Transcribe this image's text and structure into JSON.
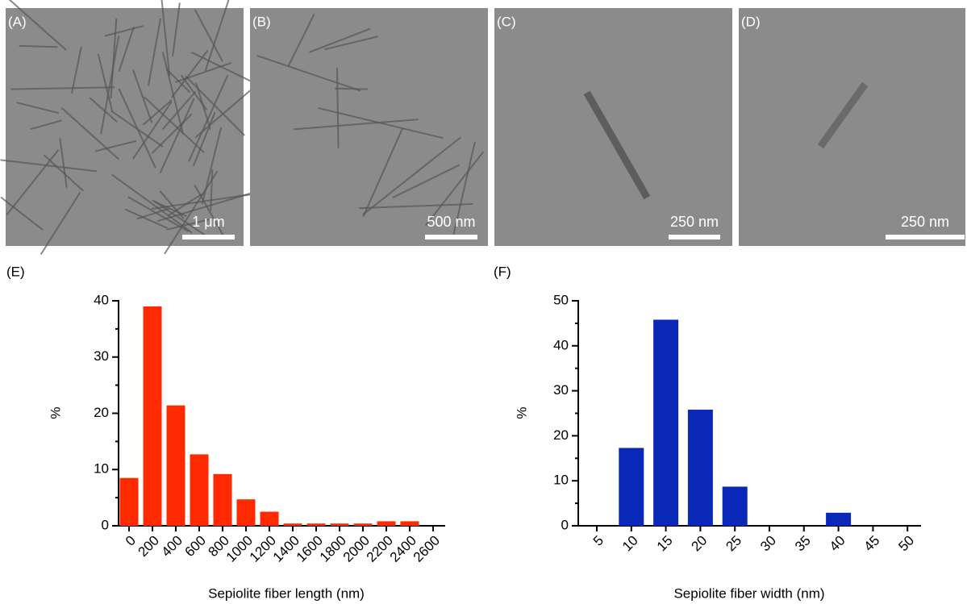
{
  "panels": [
    {
      "label": "(A)",
      "scale_bar": "1 μm"
    },
    {
      "label": "(B)",
      "scale_bar": "500 nm"
    },
    {
      "label": "(C)",
      "scale_bar": "250 nm"
    },
    {
      "label": "(D)",
      "scale_bar": "250 nm"
    }
  ],
  "chart_data": [
    {
      "type": "bar",
      "label": "(E)",
      "x_label": "Sepiolite fiber length (nm)",
      "y_label": "%",
      "categories": [
        "0",
        "200",
        "400",
        "600",
        "800",
        "1000",
        "1200",
        "1400",
        "1600",
        "1800",
        "2000",
        "2200",
        "2400",
        "2600"
      ],
      "values": [
        8.5,
        39,
        21.4,
        12.7,
        9.2,
        4.7,
        2.5,
        0.4,
        0.4,
        0.4,
        0.4,
        0.8,
        0.8,
        null
      ],
      "color": "#ff2a00",
      "ylim": [
        0,
        40
      ],
      "yticks": [
        0,
        10,
        20,
        30,
        40
      ]
    },
    {
      "type": "bar",
      "label": "(F)",
      "x_label": "Sepiolite fiber width (nm)",
      "y_label": "%",
      "categories": [
        "5",
        "10",
        "15",
        "20",
        "25",
        "30",
        "35",
        "40",
        "45",
        "50"
      ],
      "values": [
        null,
        17.3,
        45.8,
        25.8,
        8.7,
        null,
        null,
        2.9,
        null,
        null
      ],
      "color": "#0a28b8",
      "ylim": [
        0,
        50
      ],
      "yticks": [
        0,
        10,
        20,
        30,
        40,
        50
      ]
    }
  ]
}
